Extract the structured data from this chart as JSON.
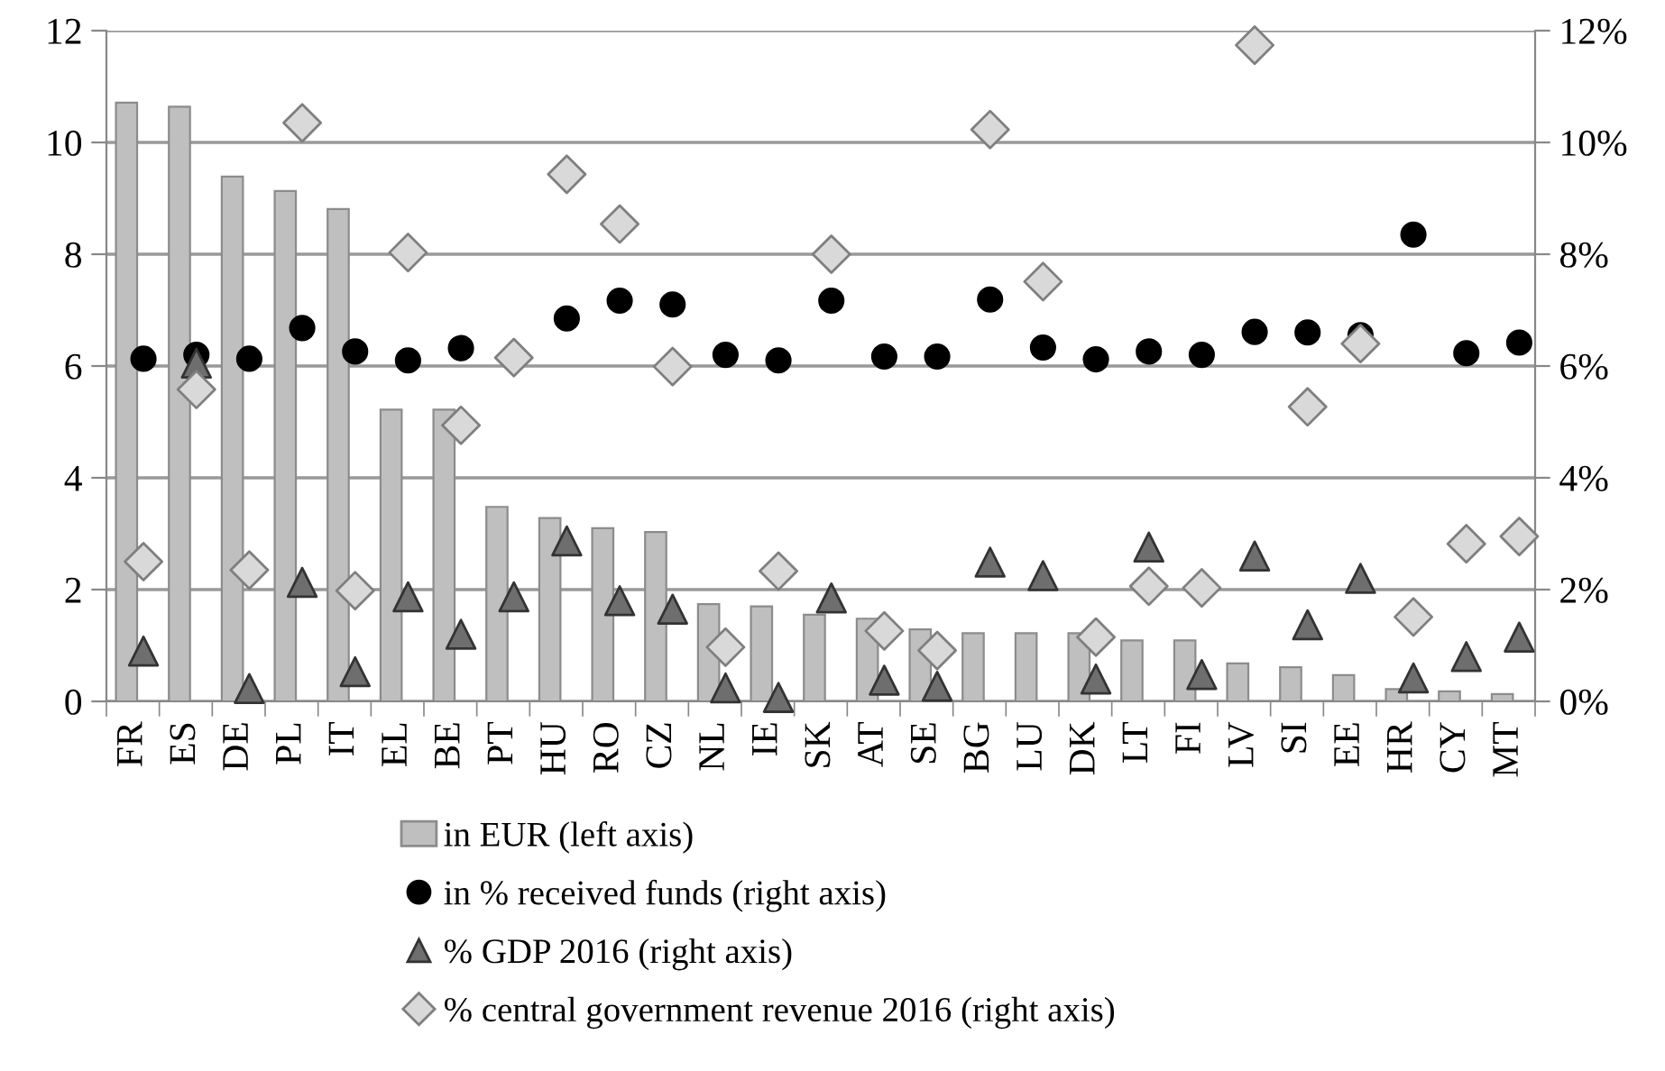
{
  "chart_data": {
    "type": "bar",
    "categories": [
      "FR",
      "ES",
      "DE",
      "PL",
      "IT",
      "EL",
      "BE",
      "PT",
      "HU",
      "RO",
      "CZ",
      "NL",
      "IE",
      "SK",
      "AT",
      "SE",
      "BG",
      "LU",
      "DK",
      "LT",
      "FI",
      "LV",
      "SI",
      "EE",
      "HR",
      "CY",
      "MT"
    ],
    "series": [
      {
        "name": "in EUR (left axis)",
        "color": "#bfbfbf",
        "values": [
          10.71,
          10.64,
          9.39,
          9.13,
          8.81,
          5.22,
          5.22,
          3.48,
          3.28,
          3.1,
          3.03,
          1.74,
          1.7,
          1.55,
          1.48,
          1.29,
          1.22,
          1.22,
          1.22,
          1.09,
          1.09,
          0.68,
          0.61,
          0.47,
          0.22,
          0.18,
          0.13
        ]
      },
      {
        "name": "in % received funds (right axis)",
        "type": "scatter",
        "axis": "y2",
        "marker": "circle",
        "color": "#000000",
        "values": [
          6.13,
          6.2,
          6.13,
          6.68,
          6.26,
          6.1,
          6.32,
          null,
          6.85,
          7.17,
          7.1,
          6.2,
          6.1,
          7.17,
          6.17,
          6.17,
          7.19,
          6.33,
          6.12,
          6.26,
          6.2,
          6.61,
          6.6,
          6.55,
          8.35,
          6.23,
          6.42
        ]
      },
      {
        "name": "% GDP 2016 (right axis)",
        "type": "scatter",
        "axis": "y2",
        "marker": "triangle",
        "color": "#6e6e6e",
        "values": [
          0.9,
          6.05,
          0.23,
          2.13,
          0.53,
          1.87,
          1.2,
          1.87,
          2.87,
          1.8,
          1.65,
          0.24,
          0.07,
          1.85,
          0.38,
          0.27,
          2.49,
          2.25,
          0.4,
          2.76,
          0.48,
          2.6,
          1.37,
          2.2,
          0.42,
          0.8,
          1.15
        ]
      },
      {
        "name": "% central government revenue 2016 (right axis)",
        "type": "scatter",
        "axis": "y2",
        "marker": "diamond",
        "color": "#d9d9d9",
        "values": [
          2.5,
          5.58,
          2.35,
          10.35,
          1.98,
          8.03,
          4.94,
          6.15,
          9.43,
          8.54,
          5.99,
          0.97,
          2.33,
          8.0,
          1.26,
          0.91,
          10.23,
          7.51,
          1.15,
          2.06,
          2.03,
          11.74,
          5.27,
          6.4,
          1.51,
          2.82,
          2.95
        ]
      }
    ],
    "ylim": [
      0,
      12
    ],
    "yticks": [
      0,
      2,
      4,
      6,
      8,
      10,
      12
    ],
    "y2lim": [
      0,
      12
    ],
    "y2ticks": [
      {
        "value": 0,
        "label": "0%"
      },
      {
        "value": 2,
        "label": "2%"
      },
      {
        "value": 4,
        "label": "4%"
      },
      {
        "value": 6,
        "label": "6%"
      },
      {
        "value": 8,
        "label": "8%"
      },
      {
        "value": 10,
        "label": "10%"
      },
      {
        "value": 12,
        "label": "12%"
      }
    ],
    "grid": "y",
    "legend": "bottom"
  }
}
